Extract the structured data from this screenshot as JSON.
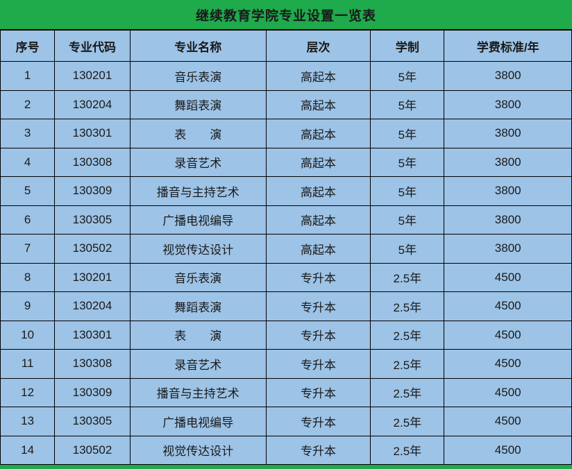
{
  "title": "继续教育学院专业设置一览表",
  "colors": {
    "title_background": "#1faa4c",
    "cell_background": "#9dc3e6",
    "border": "#000000",
    "text": "#1a1a1a"
  },
  "table": {
    "headers": [
      "序号",
      "专业代码",
      "专业名称",
      "层次",
      "学制",
      "学费标准/年"
    ],
    "rows": [
      [
        "1",
        "130201",
        "音乐表演",
        "高起本",
        "5年",
        "3800"
      ],
      [
        "2",
        "130204",
        "舞蹈表演",
        "高起本",
        "5年",
        "3800"
      ],
      [
        "3",
        "130301",
        "表　　演",
        "高起本",
        "5年",
        "3800"
      ],
      [
        "4",
        "130308",
        "录音艺术",
        "高起本",
        "5年",
        "3800"
      ],
      [
        "5",
        "130309",
        "播音与主持艺术",
        "高起本",
        "5年",
        "3800"
      ],
      [
        "6",
        "130305",
        "广播电视编导",
        "高起本",
        "5年",
        "3800"
      ],
      [
        "7",
        "130502",
        "视觉传达设计",
        "高起本",
        "5年",
        "3800"
      ],
      [
        "8",
        "130201",
        "音乐表演",
        "专升本",
        "2.5年",
        "4500"
      ],
      [
        "9",
        "130204",
        "舞蹈表演",
        "专升本",
        "2.5年",
        "4500"
      ],
      [
        "10",
        "130301",
        "表　　演",
        "专升本",
        "2.5年",
        "4500"
      ],
      [
        "11",
        "130308",
        "录音艺术",
        "专升本",
        "2.5年",
        "4500"
      ],
      [
        "12",
        "130309",
        "播音与主持艺术",
        "专升本",
        "2.5年",
        "4500"
      ],
      [
        "13",
        "130305",
        "广播电视编导",
        "专升本",
        "2.5年",
        "4500"
      ],
      [
        "14",
        "130502",
        "视觉传达设计",
        "专升本",
        "2.5年",
        "4500"
      ]
    ]
  }
}
